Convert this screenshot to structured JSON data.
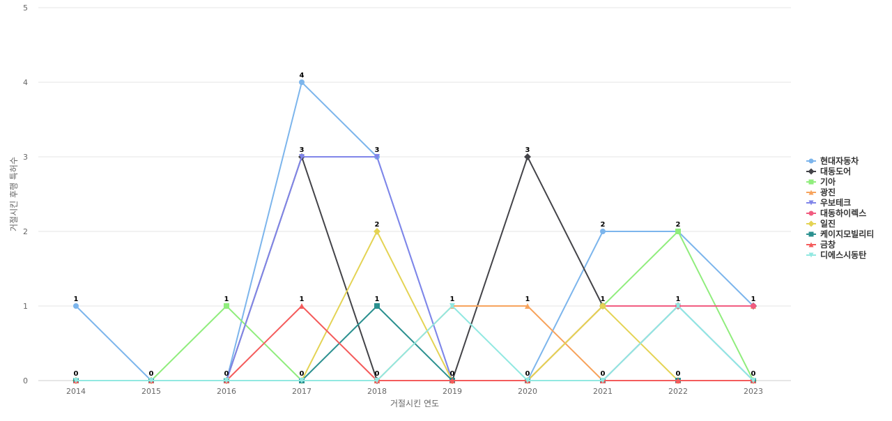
{
  "chart_data": {
    "type": "line",
    "title": "",
    "xlabel": "거절시킨 연도",
    "ylabel": "거절시킨 후행 특허수",
    "x": [
      "2014",
      "2015",
      "2016",
      "2017",
      "2018",
      "2019",
      "2020",
      "2021",
      "2022",
      "2023"
    ],
    "ylim": [
      0,
      5
    ],
    "yticks": [
      0,
      1,
      2,
      3,
      4,
      5
    ],
    "grid": true,
    "legend_position": "right",
    "series": [
      {
        "name": "현대자동차",
        "color": "#7cb5ec",
        "marker": "circle",
        "values": [
          1,
          0,
          0,
          4,
          3,
          0,
          0,
          2,
          2,
          1
        ]
      },
      {
        "name": "대동도어",
        "color": "#434348",
        "marker": "diamond",
        "values": [
          0,
          0,
          0,
          3,
          0,
          0,
          3,
          1,
          1,
          1
        ]
      },
      {
        "name": "기아",
        "color": "#90ed7d",
        "marker": "square",
        "values": [
          0,
          0,
          1,
          0,
          0,
          0,
          0,
          1,
          2,
          0
        ]
      },
      {
        "name": "광진",
        "color": "#f7a35c",
        "marker": "triangle",
        "values": [
          0,
          0,
          0,
          0,
          0,
          1,
          1,
          0,
          1,
          1
        ]
      },
      {
        "name": "우보테크",
        "color": "#8085e9",
        "marker": "triangle-down",
        "values": [
          0,
          0,
          0,
          3,
          3,
          0,
          0,
          0,
          1,
          0
        ]
      },
      {
        "name": "대동하이렉스",
        "color": "#f15c80",
        "marker": "circle",
        "values": [
          0,
          0,
          0,
          0,
          0,
          0,
          0,
          1,
          1,
          1
        ]
      },
      {
        "name": "일진",
        "color": "#e4d354",
        "marker": "diamond",
        "values": [
          0,
          0,
          0,
          0,
          2,
          0,
          0,
          1,
          0,
          0
        ]
      },
      {
        "name": "케이지모빌리티",
        "color": "#2b908f",
        "marker": "square",
        "values": [
          0,
          0,
          0,
          0,
          1,
          0,
          0,
          0,
          0,
          0
        ]
      },
      {
        "name": "금창",
        "color": "#f45b5b",
        "marker": "triangle",
        "values": [
          0,
          0,
          0,
          1,
          0,
          0,
          0,
          0,
          0,
          0
        ]
      },
      {
        "name": "디에스시동탄",
        "color": "#91e8e1",
        "marker": "triangle-down",
        "values": [
          0,
          0,
          0,
          0,
          0,
          1,
          0,
          0,
          1,
          0
        ]
      }
    ],
    "data_labels": [
      {
        "x": "2014",
        "text": "1",
        "value": 1
      },
      {
        "x": "2014",
        "text": "0",
        "value": 0
      },
      {
        "x": "2015",
        "text": "0",
        "value": 0
      },
      {
        "x": "2016",
        "text": "1",
        "value": 1
      },
      {
        "x": "2016",
        "text": "0",
        "value": 0
      },
      {
        "x": "2017",
        "text": "4",
        "value": 4
      },
      {
        "x": "2017",
        "text": "3",
        "value": 3
      },
      {
        "x": "2017",
        "text": "1",
        "value": 1
      },
      {
        "x": "2017",
        "text": "0",
        "value": 0
      },
      {
        "x": "2018",
        "text": "3",
        "value": 3
      },
      {
        "x": "2018",
        "text": "2",
        "value": 2
      },
      {
        "x": "2018",
        "text": "1",
        "value": 1
      },
      {
        "x": "2018",
        "text": "0",
        "value": 0
      },
      {
        "x": "2019",
        "text": "1",
        "value": 1
      },
      {
        "x": "2019",
        "text": "0",
        "value": 0
      },
      {
        "x": "2020",
        "text": "3",
        "value": 3
      },
      {
        "x": "2020",
        "text": "1",
        "value": 1
      },
      {
        "x": "2020",
        "text": "0",
        "value": 0
      },
      {
        "x": "2021",
        "text": "2",
        "value": 2
      },
      {
        "x": "2021",
        "text": "1",
        "value": 1
      },
      {
        "x": "2021",
        "text": "0",
        "value": 0
      },
      {
        "x": "2022",
        "text": "2",
        "value": 2
      },
      {
        "x": "2022",
        "text": "1",
        "value": 1
      },
      {
        "x": "2022",
        "text": "0",
        "value": 0
      },
      {
        "x": "2023",
        "text": "1",
        "value": 1
      },
      {
        "x": "2023",
        "text": "0",
        "value": 0
      }
    ]
  }
}
